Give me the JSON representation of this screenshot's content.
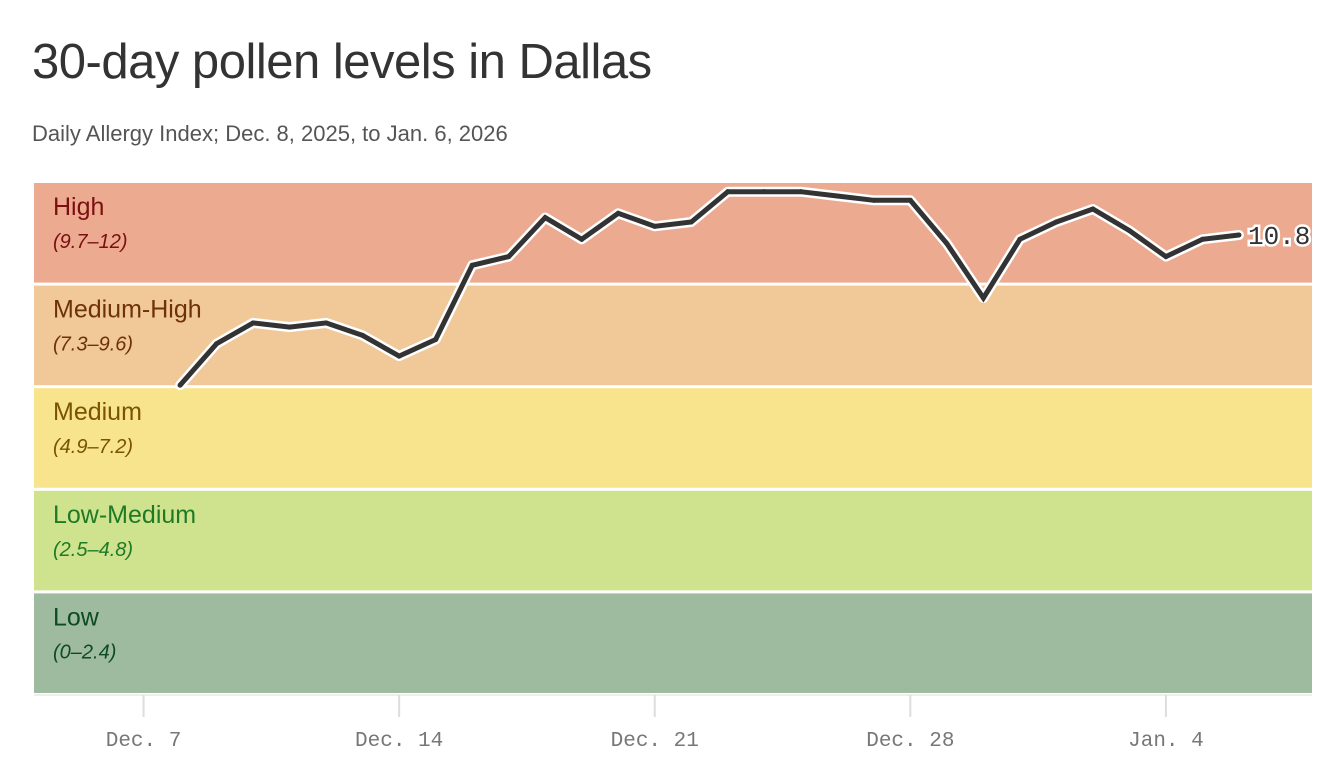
{
  "chart_data": {
    "type": "line",
    "title": "30-day pollen levels in Dallas",
    "subtitle": "Daily Allergy Index; Dec. 8, 2025, to Jan. 6, 2026",
    "xlabel": "",
    "ylabel": "",
    "ylim": [
      0,
      12
    ],
    "grid": false,
    "bands": [
      {
        "name": "High",
        "range_text": "(9.7–12)",
        "min": 9.7,
        "max": 12,
        "color": "#ecaa90",
        "text_color": "#7a1010"
      },
      {
        "name": "Medium-High",
        "range_text": "(7.3–9.6)",
        "min": 7.3,
        "max": 9.7,
        "color": "#f1c898",
        "text_color": "#6e3208"
      },
      {
        "name": "Medium",
        "range_text": "(4.9–7.2)",
        "min": 4.9,
        "max": 7.3,
        "color": "#f8e48c",
        "text_color": "#7a5400"
      },
      {
        "name": "Low-Medium",
        "range_text": "(2.5–4.8)",
        "min": 2.5,
        "max": 4.9,
        "color": "#cfe38e",
        "text_color": "#1f7a26"
      },
      {
        "name": "Low",
        "range_text": "(0–2.4)",
        "min": 0,
        "max": 2.5,
        "color": "#9ebb9f",
        "text_color": "#0e4a22"
      }
    ],
    "x_ticks": [
      {
        "date": "2025-12-07",
        "label": "Dec. 7"
      },
      {
        "date": "2025-12-14",
        "label": "Dec. 14"
      },
      {
        "date": "2025-12-21",
        "label": "Dec. 21"
      },
      {
        "date": "2025-12-28",
        "label": "Dec. 28"
      },
      {
        "date": "2026-01-04",
        "label": "Jan. 4"
      }
    ],
    "x_range": [
      "2025-12-04",
      "2026-01-08"
    ],
    "series": [
      {
        "x": [
          "2025-12-08",
          "2025-12-09",
          "2025-12-10",
          "2025-12-11",
          "2025-12-12",
          "2025-12-13",
          "2025-12-14",
          "2025-12-15",
          "2025-12-16",
          "2025-12-17",
          "2025-12-18",
          "2025-12-19",
          "2025-12-20",
          "2025-12-21",
          "2025-12-22",
          "2025-12-23",
          "2025-12-24",
          "2025-12-25",
          "2025-12-26",
          "2025-12-27",
          "2025-12-28",
          "2025-12-29",
          "2025-12-30",
          "2025-12-31",
          "2026-01-01",
          "2026-01-02",
          "2026-01-03",
          "2026-01-04",
          "2026-01-05",
          "2026-01-06"
        ],
        "values": [
          7.3,
          8.3,
          8.8,
          8.7,
          8.8,
          8.5,
          8.0,
          8.4,
          10.1,
          10.3,
          11.2,
          10.7,
          11.3,
          11.0,
          11.1,
          11.8,
          11.8,
          11.8,
          11.7,
          11.6,
          11.6,
          10.6,
          9.4,
          10.7,
          11.1,
          11.4,
          10.9,
          10.3,
          10.7,
          10.8
        ],
        "color": "#333333"
      }
    ],
    "end_label": "10.8"
  }
}
